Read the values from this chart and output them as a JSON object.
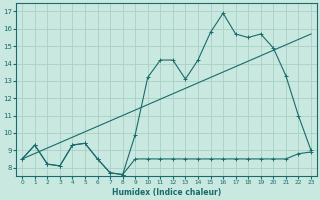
{
  "line1_x": [
    0,
    1,
    2,
    3,
    4,
    5,
    6,
    7,
    8,
    9,
    10,
    11,
    12,
    13,
    14,
    15,
    16,
    17,
    18,
    19,
    20,
    21,
    22,
    23
  ],
  "line1_y": [
    8.5,
    9.3,
    8.2,
    8.1,
    9.3,
    9.4,
    8.5,
    7.7,
    7.6,
    8.5,
    8.5,
    8.5,
    8.5,
    8.5,
    8.5,
    8.5,
    8.5,
    8.5,
    8.5,
    8.5,
    8.5,
    8.5,
    8.8,
    8.9
  ],
  "line2_x": [
    0,
    23
  ],
  "line2_y": [
    8.5,
    15.7
  ],
  "line3_x": [
    0,
    1,
    2,
    3,
    4,
    5,
    6,
    7,
    8,
    9,
    10,
    11,
    12,
    13,
    14,
    15,
    16,
    17,
    18,
    19,
    20,
    21,
    22,
    23
  ],
  "line3_y": [
    8.5,
    9.3,
    8.2,
    8.1,
    9.3,
    9.4,
    8.5,
    7.7,
    7.6,
    9.9,
    13.2,
    14.2,
    14.2,
    13.1,
    14.2,
    15.8,
    16.9,
    15.7,
    15.5,
    15.7,
    14.9,
    13.3,
    11.0,
    9.0
  ],
  "bg_color": "#c8e8e0",
  "grid_color": "#a8d0c8",
  "line_color": "#1a6b6b",
  "xlabel": "Humidex (Indice chaleur)",
  "xlim": [
    -0.5,
    23.5
  ],
  "ylim": [
    7.5,
    17.5
  ],
  "xticks": [
    0,
    1,
    2,
    3,
    4,
    5,
    6,
    7,
    8,
    9,
    10,
    11,
    12,
    13,
    14,
    15,
    16,
    17,
    18,
    19,
    20,
    21,
    22,
    23
  ],
  "yticks": [
    8,
    9,
    10,
    11,
    12,
    13,
    14,
    15,
    16,
    17
  ]
}
